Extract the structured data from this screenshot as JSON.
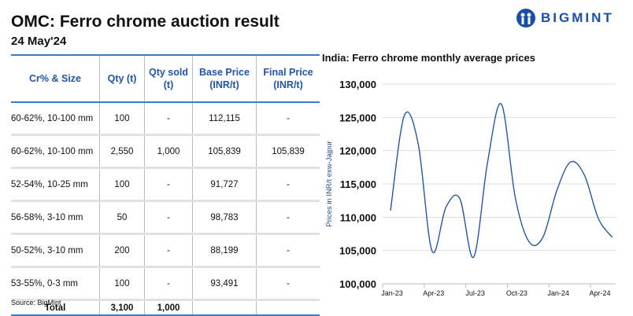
{
  "header": {
    "title": "OMC: Ferro chrome auction result",
    "date": "24 May'24",
    "logo": "BIGMINT",
    "brand_color": "#1a4fa8"
  },
  "table": {
    "columns": [
      "Cr% & Size",
      "Qty (t)",
      "Qty sold (t)",
      "Base Price (INR/t)",
      "Final Price (INR/t)"
    ],
    "rows": [
      [
        "60-62%, 10-100 mm",
        "100",
        "-",
        "112,115",
        "-"
      ],
      [
        "60-62%, 10-100 mm",
        "2,550",
        "1,000",
        "105,839",
        "105,839"
      ],
      [
        "52-54%, 10-25 mm",
        "100",
        "-",
        "91,727",
        "-"
      ],
      [
        "56-58%, 3-10 mm",
        "50",
        "-",
        "98,783",
        "-"
      ],
      [
        "50-52%, 3-10 mm",
        "200",
        "-",
        "88,199",
        "-"
      ],
      [
        "53-55%, 0-3 mm",
        "100",
        "-",
        "93,491",
        "-"
      ]
    ],
    "total": [
      "Total",
      "3,100",
      "1,000",
      "",
      ""
    ]
  },
  "source": "Source: BigMint",
  "chart_data": {
    "type": "line",
    "title": "India: Ferro chrome monthly average prices",
    "ylabel": "Prices in INR/t exw-Jajpur",
    "xlabel": "",
    "ylim": [
      100000,
      130000
    ],
    "yticks": [
      "100,000",
      "105,000",
      "110,000",
      "115,000",
      "120,000",
      "125,000",
      "130,000"
    ],
    "xticks": [
      "Jan-23",
      "Apr-23",
      "Jul-23",
      "Oct-23",
      "Jan-24",
      "Apr-24"
    ],
    "x": [
      "Jan-23",
      "Feb-23",
      "Mar-23",
      "Apr-23",
      "May-23",
      "Jun-23",
      "Jul-23",
      "Aug-23",
      "Sep-23",
      "Oct-23",
      "Nov-23",
      "Dec-23",
      "Jan-24",
      "Feb-24",
      "Mar-24",
      "Apr-24",
      "May-24"
    ],
    "values": [
      111000,
      125300,
      121000,
      104900,
      111500,
      112800,
      104000,
      118200,
      127000,
      113000,
      106300,
      107000,
      114000,
      118300,
      116300,
      109800,
      107000
    ],
    "grid": true,
    "line_color": "#1f5aa8"
  }
}
